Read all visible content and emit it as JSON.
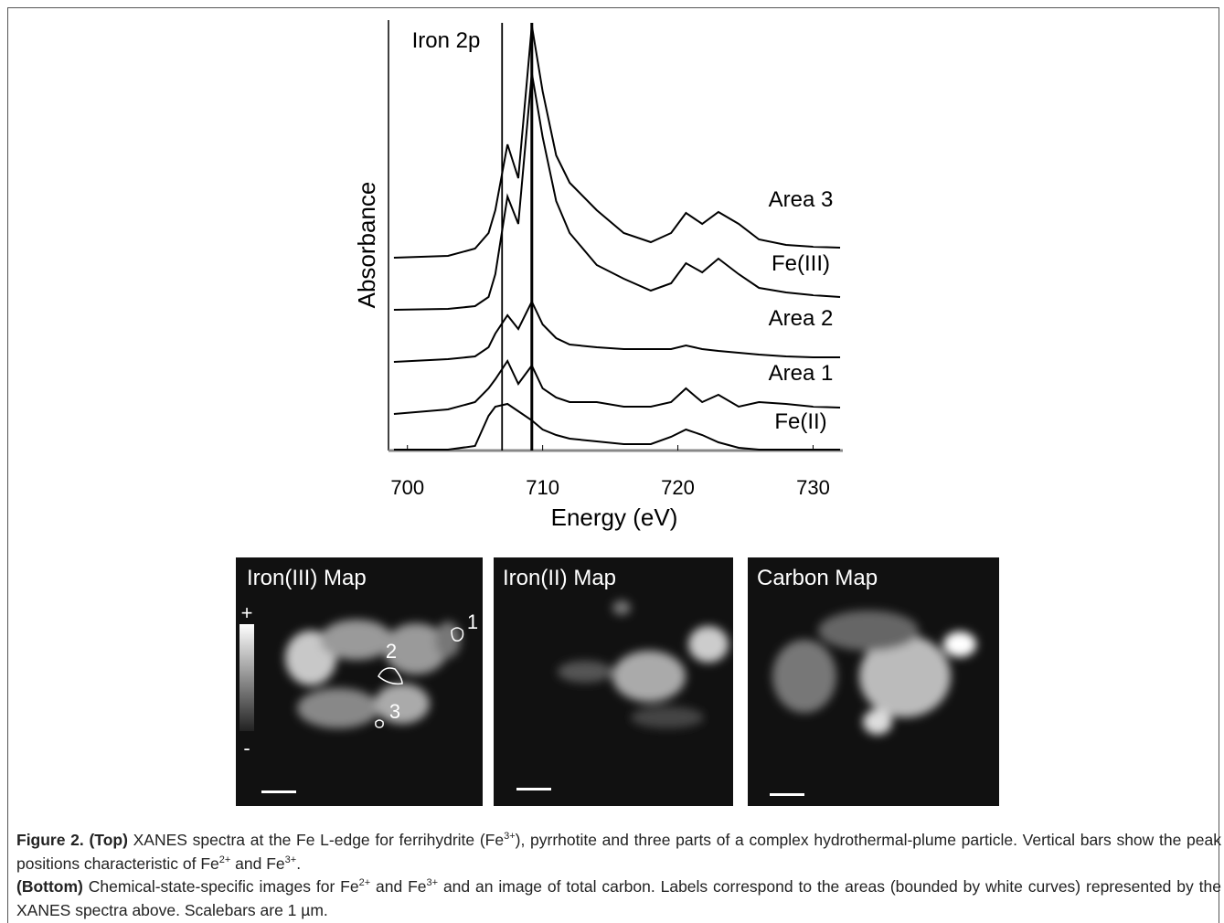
{
  "chart_data": {
    "type": "line",
    "y_label": "Absorbance",
    "x_label": "Energy (eV)",
    "annotation": "Iron 2p",
    "x": [
      699,
      703,
      705,
      706,
      706.5,
      707.4,
      708.2,
      709.2,
      710,
      711,
      712,
      714,
      716,
      718,
      719.5,
      720.6,
      721.8,
      723,
      724.5,
      726,
      728,
      730,
      732
    ],
    "series": [
      {
        "name": "Area 3",
        "color": "#000000",
        "values": [
          21.1,
          21.3,
          22.1,
          23.8,
          26.3,
          33.5,
          29.8,
          46.5,
          39.3,
          32.3,
          29.3,
          26.3,
          23.8,
          22.8,
          23.8,
          26.0,
          24.8,
          26.1,
          24.8,
          23.1,
          22.5,
          22.3,
          22.2
        ]
      },
      {
        "name": "Fe(III)",
        "color": "#000000",
        "values": [
          15.4,
          15.5,
          15.8,
          16.8,
          19.3,
          27.8,
          24.8,
          41.3,
          34.3,
          27.3,
          23.8,
          20.3,
          18.8,
          17.5,
          18.3,
          20.5,
          19.5,
          21.0,
          19.3,
          17.8,
          17.3,
          17.0,
          16.8
        ]
      },
      {
        "name": "Area 2",
        "color": "#000000",
        "values": [
          9.7,
          10.0,
          10.3,
          11.3,
          12.8,
          14.8,
          13.3,
          16.3,
          13.8,
          12.3,
          11.6,
          11.3,
          11.1,
          11.1,
          11.1,
          11.5,
          11.1,
          10.9,
          10.7,
          10.5,
          10.3,
          10.2,
          10.2
        ]
      },
      {
        "name": "Area 1",
        "color": "#000000",
        "values": [
          4.0,
          4.5,
          5.3,
          6.8,
          7.8,
          9.8,
          7.3,
          9.3,
          6.8,
          5.8,
          5.3,
          5.3,
          4.8,
          4.8,
          5.3,
          6.8,
          5.3,
          6.1,
          4.8,
          5.3,
          5.1,
          4.8,
          4.7
        ]
      },
      {
        "name": "Fe(II)",
        "color": "#000000",
        "values": [
          0.1,
          0.1,
          0.5,
          3.8,
          4.8,
          5.1,
          4.3,
          3.3,
          2.3,
          1.7,
          1.3,
          1.0,
          0.7,
          0.7,
          1.5,
          2.3,
          1.7,
          0.9,
          0.3,
          0.1,
          0.1,
          0.1,
          0.1
        ]
      }
    ],
    "vlines": [
      707.0,
      709.2
    ],
    "xlim": [
      698.6,
      732.2
    ],
    "xticks": [
      700,
      710,
      720,
      730
    ],
    "ylim": [
      0,
      46.8
    ]
  },
  "maps": [
    {
      "title": "Iron(III) Map"
    },
    {
      "title": "Iron(II) Map"
    },
    {
      "title": "Carbon Map"
    }
  ],
  "colorbar": {
    "plus": "+",
    "minus": "-"
  },
  "area_labels": [
    "1",
    "2",
    "3"
  ],
  "caption": {
    "figure": "Figure 2.",
    "top_label": "(Top)",
    "top_text": [
      "XANES spectra at the Fe L-edge for ferrihydrite (Fe",
      "3+",
      "), pyrrhotite and three parts of a complex hydrothermal-plume particle. Vertical bars show the peak positions characteristic of Fe",
      "2+",
      " and Fe",
      "3+",
      "."
    ],
    "bottom_label": "(Bottom)",
    "bottom_text": [
      "Chemical-state-specific images for Fe",
      "2+",
      " and Fe",
      "3+",
      " and an image of total carbon. Labels correspond to the areas (bounded by white curves) represented by the XANES spectra above. Scalebars are 1 µm."
    ]
  }
}
